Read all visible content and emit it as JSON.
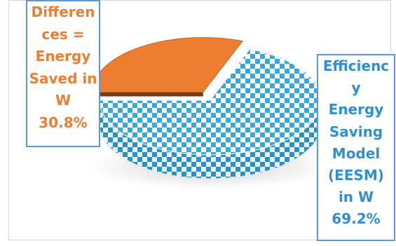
{
  "chart_data": {
    "type": "pie",
    "style": "3d",
    "slices": [
      {
        "label_lines": [
          "Efficienc",
          "y",
          "Energy",
          "Saving",
          "Model",
          "(EESM)",
          "in W",
          "69.2%"
        ],
        "value": 69.2,
        "fill": "checker",
        "color": "#3aa7dc"
      },
      {
        "label_lines": [
          "Differen",
          "ces =",
          "Energy",
          "Saved in",
          "W",
          "30.8%"
        ],
        "value": 30.8,
        "fill": "solid",
        "color": "#ed7d31",
        "exploded": true
      }
    ]
  },
  "colors": {
    "label_border": "#5b9bd5",
    "orange": "#ed7d31",
    "blue": "#2e8fd6"
  }
}
